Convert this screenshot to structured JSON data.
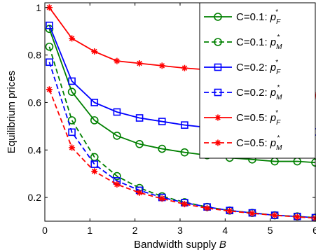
{
  "chart_data": {
    "type": "line",
    "xlabel": "Bandwidth supply",
    "xlabel_var": "B",
    "ylabel": "Equilibrium prices",
    "xlim": [
      0,
      6
    ],
    "ylim": [
      0.1,
      1.02
    ],
    "xticks": [
      "0",
      "1",
      "2",
      "3",
      "4",
      "5",
      "6"
    ],
    "yticks": [
      "0.2",
      "0.4",
      "0.6",
      "0.8",
      "1"
    ],
    "grid": false,
    "legend_position": "top-right",
    "series": [
      {
        "name": "C=0.1: p_F^*",
        "legend_prefix": "C=0.1: ",
        "color": "#008000",
        "dash": "solid",
        "marker": "circle",
        "x": [
          0.1,
          0.6,
          1.1,
          1.6,
          2.1,
          2.6,
          3.1,
          3.6,
          4.1,
          4.6,
          5.1,
          5.6,
          6.0
        ],
        "y": [
          0.91,
          0.645,
          0.525,
          0.46,
          0.425,
          0.405,
          0.39,
          0.378,
          0.367,
          0.36,
          0.352,
          0.352,
          0.347
        ]
      },
      {
        "name": "C=0.1: p_M^*",
        "legend_prefix": "C=0.1: ",
        "color": "#008000",
        "dash": "dashed",
        "marker": "circle",
        "x": [
          0.1,
          0.6,
          1.1,
          1.6,
          2.1,
          2.6,
          3.1,
          3.6,
          4.1,
          4.6,
          5.1,
          5.6,
          6.0
        ],
        "y": [
          0.835,
          0.525,
          0.37,
          0.29,
          0.24,
          0.205,
          0.18,
          0.16,
          0.145,
          0.135,
          0.125,
          0.12,
          0.115
        ]
      },
      {
        "name": "C=0.2: p_F^*",
        "legend_prefix": "C=0.2: ",
        "color": "#0000ff",
        "dash": "solid",
        "marker": "square",
        "x": [
          0.1,
          0.6,
          1.1,
          1.6,
          2.1,
          2.6,
          3.1,
          3.6,
          4.1,
          4.6,
          5.1,
          5.6,
          6.0
        ],
        "y": [
          0.925,
          0.69,
          0.6,
          0.56,
          0.535,
          0.52,
          0.505,
          0.495,
          0.49,
          0.485,
          0.48,
          0.478,
          0.476
        ]
      },
      {
        "name": "C=0.2: p_M^*",
        "legend_prefix": "C=0.2: ",
        "color": "#0000ff",
        "dash": "dashed",
        "marker": "square",
        "x": [
          0.1,
          0.6,
          1.1,
          1.6,
          2.1,
          2.6,
          3.1,
          3.6,
          4.1,
          4.6,
          5.1,
          5.6,
          6.0
        ],
        "y": [
          0.77,
          0.475,
          0.34,
          0.27,
          0.23,
          0.2,
          0.178,
          0.16,
          0.145,
          0.135,
          0.125,
          0.12,
          0.115
        ]
      },
      {
        "name": "C=0.5: p_F^*",
        "legend_prefix": "C=0.5: ",
        "color": "#ff0000",
        "dash": "solid",
        "marker": "star",
        "x": [
          0.1,
          0.6,
          1.1,
          1.6,
          2.1,
          2.6,
          3.1,
          3.6,
          4.1,
          4.6,
          5.1,
          5.6,
          6.0
        ],
        "y": [
          1.0,
          0.87,
          0.815,
          0.775,
          0.765,
          0.755,
          0.745,
          0.738,
          0.73,
          0.72,
          0.715,
          0.71,
          0.63
        ]
      },
      {
        "name": "C=0.5: p_M^*",
        "legend_prefix": "C=0.5: ",
        "color": "#ff0000",
        "dash": "dashed",
        "marker": "star",
        "x": [
          0.1,
          0.6,
          1.1,
          1.6,
          2.1,
          2.6,
          3.1,
          3.6,
          4.1,
          4.6,
          5.1,
          5.6,
          6.0
        ],
        "y": [
          0.655,
          0.41,
          0.31,
          0.255,
          0.22,
          0.195,
          0.172,
          0.155,
          0.143,
          0.133,
          0.125,
          0.118,
          0.113
        ]
      }
    ]
  }
}
